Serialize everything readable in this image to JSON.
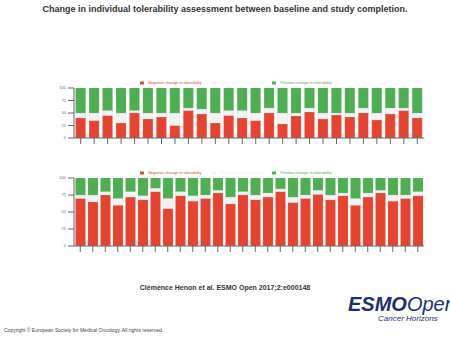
{
  "page": {
    "title": "Change in individual tolerability assessment between baseline and study completion.",
    "citation": "Clémence Henon et al. ESMO Open 2017;2:e000148",
    "copyright": "Copyright © European Society for Medical Oncology. All rights reserved.",
    "logo": {
      "brand": "ESMO",
      "brand2": "Open",
      "tagline": "Cancer Horizons"
    }
  },
  "chart_data": [
    {
      "type": "bar",
      "stacked": true,
      "legend": "top",
      "grid": false,
      "categories": [
        null,
        null,
        null,
        null,
        null,
        null,
        null,
        null,
        null,
        null,
        null,
        null,
        null,
        null,
        null,
        null,
        null,
        null,
        null,
        null,
        null,
        null,
        null,
        null,
        null,
        null
      ],
      "ylim": [
        0,
        100
      ],
      "yticks": [
        0,
        25,
        50,
        75,
        100
      ],
      "series": [
        {
          "name": "Negative change in tolerability",
          "color": "#e8432e",
          "values": [
            40,
            35,
            45,
            30,
            50,
            38,
            42,
            25,
            55,
            48,
            30,
            45,
            40,
            35,
            50,
            28,
            44,
            52,
            38,
            46,
            42,
            50,
            36,
            48,
            55,
            40
          ]
        },
        {
          "name": "No change in tolerability",
          "color": "#f3f3f3",
          "values": [
            10,
            15,
            10,
            20,
            5,
            12,
            8,
            25,
            5,
            10,
            20,
            10,
            15,
            15,
            10,
            22,
            6,
            8,
            12,
            4,
            8,
            10,
            14,
            12,
            5,
            10
          ]
        },
        {
          "name": "Positive change in tolerability",
          "color": "#4caf50",
          "values": [
            50,
            50,
            45,
            50,
            45,
            50,
            50,
            50,
            40,
            42,
            50,
            45,
            45,
            50,
            40,
            50,
            50,
            40,
            50,
            50,
            50,
            40,
            50,
            40,
            40,
            50
          ]
        }
      ]
    },
    {
      "type": "bar",
      "stacked": true,
      "legend": "top",
      "grid": false,
      "categories": [
        null,
        null,
        null,
        null,
        null,
        null,
        null,
        null,
        null,
        null,
        null,
        null,
        null,
        null,
        null,
        null,
        null,
        null,
        null,
        null,
        null,
        null,
        null,
        null,
        null,
        null,
        null,
        null
      ],
      "ylim": [
        0,
        100
      ],
      "yticks": [
        0,
        25,
        50,
        75,
        100
      ],
      "series": [
        {
          "name": "Negative change in tolerability",
          "color": "#e8432e",
          "values": [
            70,
            65,
            75,
            60,
            72,
            68,
            80,
            55,
            74,
            66,
            70,
            78,
            62,
            75,
            68,
            72,
            80,
            64,
            70,
            76,
            68,
            74,
            60,
            72,
            78,
            66,
            70,
            74
          ]
        },
        {
          "name": "No change in tolerability",
          "color": "#f3f3f3",
          "values": [
            5,
            10,
            5,
            10,
            8,
            6,
            5,
            15,
            6,
            8,
            5,
            4,
            10,
            5,
            7,
            6,
            4,
            8,
            5,
            6,
            7,
            4,
            10,
            6,
            4,
            9,
            5,
            6
          ]
        },
        {
          "name": "Positive change in tolerability",
          "color": "#4caf50",
          "values": [
            25,
            25,
            20,
            30,
            20,
            26,
            15,
            30,
            20,
            26,
            25,
            18,
            28,
            20,
            25,
            22,
            16,
            28,
            25,
            18,
            25,
            22,
            30,
            22,
            18,
            25,
            25,
            20
          ]
        }
      ]
    }
  ]
}
